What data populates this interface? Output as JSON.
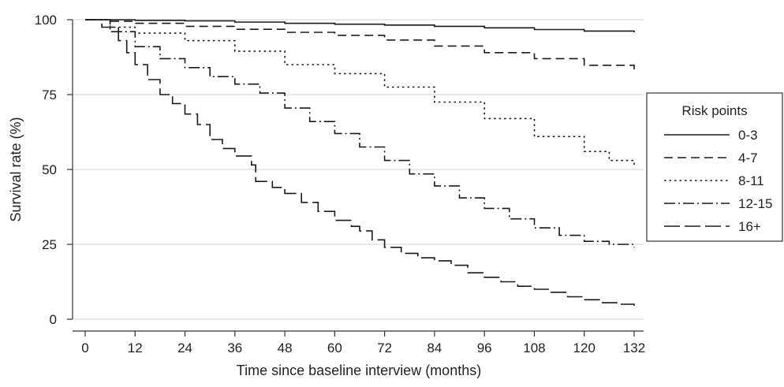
{
  "chart_data": {
    "type": "line",
    "title": "",
    "xlabel": "Time since baseline interview (months)",
    "ylabel": "Survival rate (%)",
    "xlim": [
      0,
      132
    ],
    "ylim": [
      0,
      100
    ],
    "xticks": [
      0,
      12,
      24,
      36,
      48,
      60,
      72,
      84,
      96,
      108,
      120,
      132
    ],
    "yticks": [
      0,
      25,
      50,
      75,
      100
    ],
    "grid": "horizontal",
    "legend": {
      "title": "Risk points",
      "placement": "right"
    },
    "series": [
      {
        "name": "0-3",
        "dash": "solid",
        "points": [
          [
            0,
            100
          ],
          [
            12,
            99.8
          ],
          [
            24,
            99.6
          ],
          [
            36,
            99.2
          ],
          [
            48,
            98.8
          ],
          [
            60,
            98.5
          ],
          [
            72,
            98.2
          ],
          [
            84,
            97.8
          ],
          [
            96,
            97.3
          ],
          [
            108,
            96.7
          ],
          [
            120,
            96.2
          ],
          [
            132,
            95.8
          ]
        ]
      },
      {
        "name": "4-7",
        "dash": "dashed",
        "points": [
          [
            0,
            100
          ],
          [
            6,
            99.5
          ],
          [
            12,
            98.8
          ],
          [
            24,
            97.8
          ],
          [
            36,
            96.8
          ],
          [
            48,
            95.8
          ],
          [
            60,
            94.8
          ],
          [
            72,
            93.2
          ],
          [
            84,
            91.2
          ],
          [
            96,
            89.0
          ],
          [
            108,
            87.0
          ],
          [
            120,
            84.8
          ],
          [
            132,
            82.8
          ]
        ]
      },
      {
        "name": "8-11",
        "dash": "dotted",
        "points": [
          [
            0,
            100
          ],
          [
            6,
            97.5
          ],
          [
            12,
            95.5
          ],
          [
            24,
            93
          ],
          [
            36,
            89.5
          ],
          [
            48,
            85
          ],
          [
            60,
            82
          ],
          [
            72,
            77.5
          ],
          [
            84,
            72.5
          ],
          [
            96,
            67
          ],
          [
            108,
            61
          ],
          [
            120,
            56
          ],
          [
            126,
            53
          ],
          [
            132,
            51.5
          ]
        ]
      },
      {
        "name": "12-15",
        "dash": "dashdot",
        "points": [
          [
            0,
            100
          ],
          [
            6,
            96
          ],
          [
            12,
            91
          ],
          [
            18,
            87
          ],
          [
            24,
            84
          ],
          [
            30,
            81
          ],
          [
            36,
            78.5
          ],
          [
            42,
            75.5
          ],
          [
            48,
            70.5
          ],
          [
            54,
            66
          ],
          [
            60,
            62
          ],
          [
            66,
            57.5
          ],
          [
            72,
            53
          ],
          [
            78,
            48.5
          ],
          [
            84,
            44.5
          ],
          [
            90,
            40.5
          ],
          [
            96,
            37
          ],
          [
            102,
            33.5
          ],
          [
            108,
            30.5
          ],
          [
            114,
            28
          ],
          [
            120,
            26
          ],
          [
            126,
            25
          ],
          [
            132,
            24
          ]
        ]
      },
      {
        "name": "16+",
        "dash": "longdash",
        "points": [
          [
            0,
            100
          ],
          [
            4,
            97.5
          ],
          [
            8,
            93
          ],
          [
            10,
            89
          ],
          [
            12,
            85
          ],
          [
            15,
            80
          ],
          [
            18,
            75
          ],
          [
            21,
            72
          ],
          [
            24,
            68.5
          ],
          [
            27,
            65
          ],
          [
            30,
            60
          ],
          [
            33,
            57
          ],
          [
            36,
            54.5
          ],
          [
            40,
            51.5
          ],
          [
            41,
            46
          ],
          [
            45,
            44
          ],
          [
            48,
            42
          ],
          [
            52,
            39
          ],
          [
            56,
            36
          ],
          [
            60,
            33
          ],
          [
            64,
            31
          ],
          [
            66,
            29.5
          ],
          [
            69,
            26.5
          ],
          [
            72,
            24
          ],
          [
            76,
            22
          ],
          [
            80,
            20.5
          ],
          [
            84,
            19.5
          ],
          [
            88,
            18
          ],
          [
            92,
            15.5
          ],
          [
            96,
            14
          ],
          [
            100,
            12.5
          ],
          [
            104,
            11
          ],
          [
            108,
            10
          ],
          [
            112,
            9
          ],
          [
            116,
            7.5
          ],
          [
            120,
            6.5
          ],
          [
            124,
            5.5
          ],
          [
            128,
            5
          ],
          [
            132,
            4.5
          ]
        ]
      }
    ]
  }
}
